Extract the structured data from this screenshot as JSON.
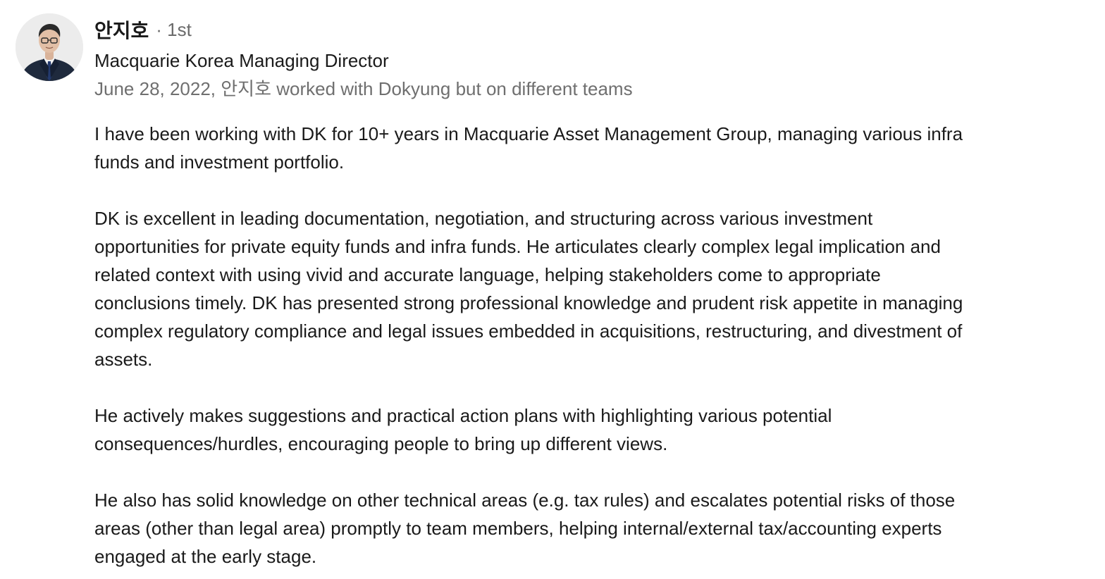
{
  "author": {
    "name": "안지호",
    "degree": "· 1st",
    "headline": "Macquarie Korea Managing Director",
    "meta": "June 28, 2022, 안지호 worked with Dokyung but on different teams",
    "avatar_icon": "profile-photo"
  },
  "recommendation": {
    "paragraphs": [
      {
        "lines": [
          "I have been working with DK for 10+ years in Macquarie Asset Management Group, managing various infra",
          "funds and investment portfolio."
        ]
      },
      {
        "lines": [
          "DK is excellent in leading documentation, negotiation, and structuring across various investment",
          "opportunities for private equity funds and infra funds. He articulates clearly complex legal implication and",
          "related context with using vivid and accurate language, helping stakeholders come to appropriate",
          "conclusions timely. DK has presented strong professional knowledge and prudent risk appetite in managing",
          "complex regulatory compliance and legal issues embedded in acquisitions, restructuring, and divestment of",
          "assets."
        ]
      },
      {
        "lines": [
          "He actively makes suggestions and practical action plans with highlighting various potential",
          "consequences/hurdles, encouraging people to bring up different views."
        ]
      },
      {
        "lines": [
          "He also has solid knowledge on other technical areas (e.g. tax rules) and escalates potential risks of those",
          "areas (other than legal area) promptly to team members, helping internal/external tax/accounting experts",
          "engaged at the early stage."
        ]
      }
    ]
  }
}
